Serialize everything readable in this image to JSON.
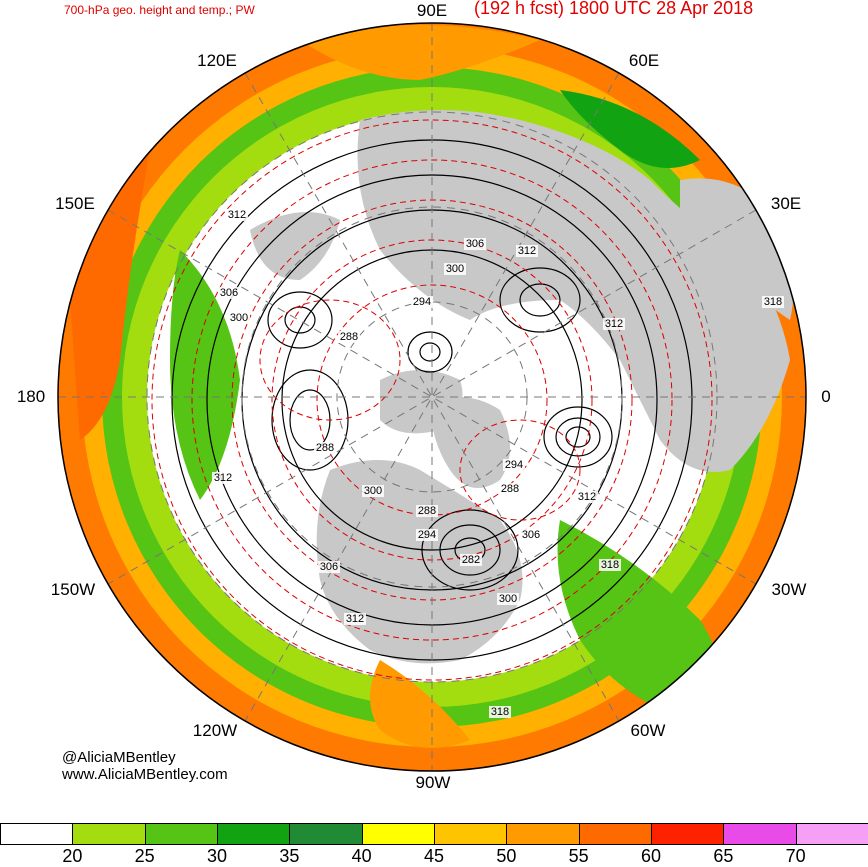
{
  "title": {
    "left": "700-hPa geo. height and temp.; PW",
    "right": "(192 h fcst) 1800 UTC 28 Apr 2018"
  },
  "longitude_labels": [
    "90E",
    "60E",
    "30E",
    "0",
    "30W",
    "60W",
    "90W",
    "120W",
    "150W",
    "180",
    "150E",
    "120E"
  ],
  "contour_labels": [
    "312",
    "306",
    "300",
    "288",
    "294",
    "306",
    "312",
    "300",
    "318",
    "312",
    "288",
    "312",
    "300",
    "294",
    "288",
    "288",
    "294",
    "306",
    "282",
    "300",
    "306",
    "312",
    "318",
    "312",
    "318"
  ],
  "credits": {
    "handle": "@AliciaMBentley",
    "website": "www.AliciaMBentley.com"
  },
  "legend": {
    "ticks": [
      "20",
      "25",
      "30",
      "35",
      "40",
      "45",
      "50",
      "55",
      "60",
      "65",
      "70"
    ],
    "colors": [
      "#ffffff",
      "#a3dd0f",
      "#55c415",
      "#12a312",
      "#208a34",
      "#ffff00",
      "#ffc400",
      "#ff9a00",
      "#ff6a00",
      "#ff2200",
      "#e84be8",
      "#f5a0f5"
    ]
  },
  "colors": {
    "land": "#c8c8c8",
    "height_contour": "#000000",
    "temp_contour": "#dd0000",
    "title": "#e00000"
  }
}
